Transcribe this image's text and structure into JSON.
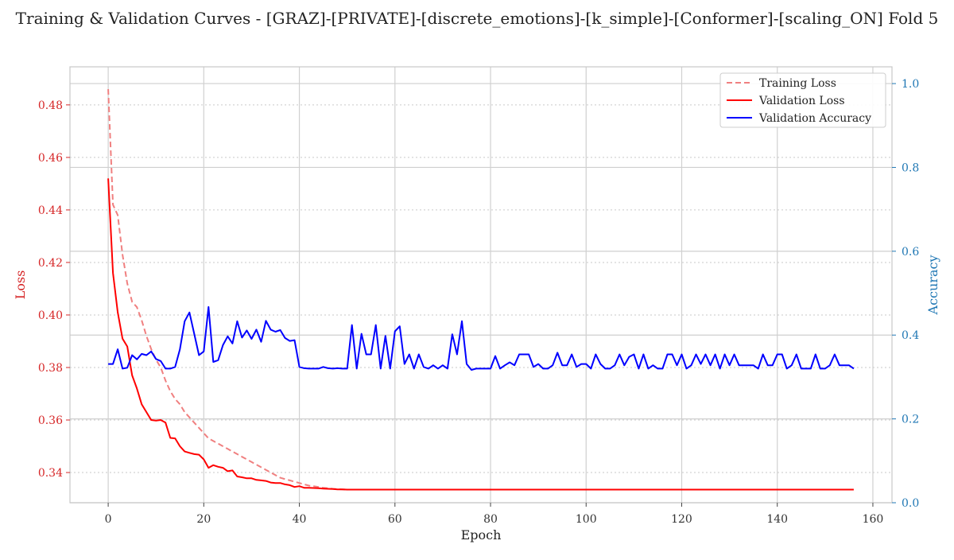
{
  "chart_data": {
    "type": "line",
    "title": "Training & Validation Curves - [GRAZ]-[PRIVATE]-[discrete_emotions]-[k_simple]-[Conformer]-[scaling_ON] Fold 5",
    "xlabel": "Epoch",
    "ylabel_left": "Loss",
    "ylabel_right": "Accuracy",
    "xlim": [
      -8,
      164
    ],
    "ylim_left": [
      0.3285,
      0.4945
    ],
    "ylim_right": [
      0.0,
      1.04
    ],
    "xticks": [
      0,
      20,
      40,
      60,
      80,
      100,
      120,
      140,
      160
    ],
    "yticks_left": [
      0.34,
      0.36,
      0.38,
      0.4,
      0.42,
      0.44,
      0.46,
      0.48
    ],
    "yticks_right": [
      0.0,
      0.2,
      0.4,
      0.6,
      0.8,
      1.0
    ],
    "grid": true,
    "legend_position": "top-right",
    "colors": {
      "training_loss": "#f08080",
      "validation_loss": "#ff0000",
      "validation_accuracy": "#0000ff",
      "left_axis": "#d62728",
      "right_axis": "#1f77b4"
    },
    "series": [
      {
        "name": "Training Loss",
        "axis": "left",
        "style": "dashed",
        "color": "#f08080",
        "x": [
          0,
          1,
          2,
          3,
          4,
          5,
          6,
          7,
          8,
          9,
          10,
          11,
          12,
          13,
          14,
          15,
          16,
          17,
          18,
          19,
          20,
          21,
          22,
          23,
          24,
          25,
          26,
          27,
          28,
          29,
          30,
          31,
          32,
          33,
          34,
          35,
          36,
          37,
          38,
          39,
          40,
          41,
          42,
          43,
          44,
          45,
          46,
          47,
          48,
          49,
          50,
          52,
          55,
          60,
          65,
          70,
          75,
          80,
          90,
          100,
          110,
          120,
          130,
          140,
          150,
          156
        ],
        "values": [
          0.486,
          0.442,
          0.438,
          0.423,
          0.412,
          0.405,
          0.403,
          0.398,
          0.392,
          0.387,
          0.383,
          0.38,
          0.375,
          0.371,
          0.368,
          0.366,
          0.363,
          0.361,
          0.359,
          0.357,
          0.355,
          0.353,
          0.352,
          0.351,
          0.35,
          0.349,
          0.348,
          0.347,
          0.346,
          0.345,
          0.344,
          0.343,
          0.342,
          0.341,
          0.34,
          0.339,
          0.338,
          0.3375,
          0.337,
          0.3365,
          0.336,
          0.3355,
          0.335,
          0.3348,
          0.3345,
          0.3342,
          0.334,
          0.3338,
          0.3337,
          0.3336,
          0.3335,
          0.3335,
          0.3335,
          0.3335,
          0.3335,
          0.3335,
          0.3335,
          0.3335,
          0.3335,
          0.3335,
          0.3335,
          0.3335,
          0.3335,
          0.3335,
          0.3335,
          0.3335
        ]
      },
      {
        "name": "Validation Loss",
        "axis": "left",
        "style": "solid",
        "color": "#ff0000",
        "x": [
          0,
          1,
          2,
          3,
          4,
          5,
          6,
          7,
          8,
          9,
          10,
          11,
          12,
          13,
          14,
          15,
          16,
          17,
          18,
          19,
          20,
          21,
          22,
          23,
          24,
          25,
          26,
          27,
          28,
          29,
          30,
          31,
          32,
          33,
          34,
          35,
          36,
          37,
          38,
          39,
          40,
          41,
          42,
          43,
          44,
          45,
          46,
          47,
          48,
          49,
          50,
          52,
          55,
          60,
          65,
          70,
          75,
          80,
          90,
          100,
          110,
          120,
          130,
          140,
          150,
          156
        ],
        "values": [
          0.452,
          0.416,
          0.401,
          0.391,
          0.388,
          0.377,
          0.372,
          0.366,
          0.363,
          0.36,
          0.3598,
          0.36,
          0.359,
          0.3532,
          0.353,
          0.35,
          0.348,
          0.3475,
          0.347,
          0.3468,
          0.345,
          0.3418,
          0.3428,
          0.3422,
          0.3418,
          0.3405,
          0.3408,
          0.3385,
          0.3382,
          0.3378,
          0.3378,
          0.3372,
          0.337,
          0.3368,
          0.3362,
          0.336,
          0.336,
          0.3355,
          0.3352,
          0.3345,
          0.3348,
          0.3342,
          0.3342,
          0.3341,
          0.334,
          0.3339,
          0.3338,
          0.3337,
          0.3336,
          0.3336,
          0.3335,
          0.3335,
          0.3335,
          0.3335,
          0.3335,
          0.3335,
          0.3335,
          0.3335,
          0.3335,
          0.3335,
          0.3335,
          0.3335,
          0.3335,
          0.3335,
          0.3335,
          0.3335
        ]
      },
      {
        "name": "Validation Accuracy",
        "axis": "right",
        "style": "solid",
        "color": "#0000ff",
        "x": [
          0,
          1,
          2,
          3,
          4,
          5,
          6,
          7,
          8,
          9,
          10,
          11,
          12,
          13,
          14,
          15,
          16,
          17,
          18,
          19,
          20,
          21,
          22,
          23,
          24,
          25,
          26,
          27,
          28,
          29,
          30,
          31,
          32,
          33,
          34,
          35,
          36,
          37,
          38,
          39,
          40,
          41,
          42,
          43,
          44,
          45,
          46,
          47,
          48,
          49,
          50,
          51,
          52,
          53,
          54,
          55,
          56,
          57,
          58,
          59,
          60,
          61,
          62,
          63,
          64,
          65,
          66,
          67,
          68,
          69,
          70,
          71,
          72,
          73,
          74,
          75,
          76,
          77,
          78,
          79,
          80,
          81,
          82,
          83,
          84,
          85,
          86,
          87,
          88,
          89,
          90,
          91,
          92,
          93,
          94,
          95,
          96,
          97,
          98,
          99,
          100,
          101,
          102,
          103,
          104,
          105,
          106,
          107,
          108,
          109,
          110,
          111,
          112,
          113,
          114,
          115,
          116,
          117,
          118,
          119,
          120,
          121,
          122,
          123,
          124,
          125,
          126,
          127,
          128,
          129,
          130,
          131,
          132,
          133,
          134,
          135,
          136,
          137,
          138,
          139,
          140,
          141,
          142,
          143,
          144,
          145,
          146,
          147,
          148,
          149,
          150,
          151,
          152,
          153,
          154,
          155,
          156
        ],
        "values": [
          0.331,
          0.331,
          0.366,
          0.32,
          0.322,
          0.352,
          0.342,
          0.355,
          0.352,
          0.361,
          0.343,
          0.338,
          0.32,
          0.32,
          0.324,
          0.366,
          0.433,
          0.454,
          0.403,
          0.352,
          0.361,
          0.467,
          0.336,
          0.34,
          0.376,
          0.397,
          0.38,
          0.433,
          0.394,
          0.411,
          0.391,
          0.413,
          0.384,
          0.434,
          0.413,
          0.408,
          0.412,
          0.393,
          0.386,
          0.388,
          0.324,
          0.321,
          0.32,
          0.32,
          0.32,
          0.324,
          0.321,
          0.32,
          0.321,
          0.32,
          0.32,
          0.424,
          0.32,
          0.403,
          0.354,
          0.354,
          0.424,
          0.32,
          0.398,
          0.32,
          0.409,
          0.421,
          0.331,
          0.354,
          0.32,
          0.354,
          0.324,
          0.32,
          0.328,
          0.32,
          0.328,
          0.32,
          0.402,
          0.354,
          0.433,
          0.331,
          0.317,
          0.32,
          0.32,
          0.32,
          0.32,
          0.35,
          0.32,
          0.328,
          0.335,
          0.328,
          0.354,
          0.354,
          0.354,
          0.324,
          0.331,
          0.32,
          0.32,
          0.328,
          0.358,
          0.328,
          0.328,
          0.354,
          0.324,
          0.331,
          0.331,
          0.32,
          0.354,
          0.331,
          0.32,
          0.32,
          0.328,
          0.354,
          0.328,
          0.348,
          0.354,
          0.32,
          0.354,
          0.32,
          0.328,
          0.32,
          0.32,
          0.354,
          0.354,
          0.328,
          0.354,
          0.32,
          0.328,
          0.354,
          0.331,
          0.354,
          0.328,
          0.354,
          0.32,
          0.354,
          0.328,
          0.354,
          0.328,
          0.328,
          0.328,
          0.328,
          0.32,
          0.354,
          0.328,
          0.328,
          0.354,
          0.354,
          0.32,
          0.328,
          0.354,
          0.32,
          0.32,
          0.32,
          0.354,
          0.32,
          0.32,
          0.328,
          0.354,
          0.328,
          0.328,
          0.328,
          0.32
        ]
      }
    ]
  }
}
